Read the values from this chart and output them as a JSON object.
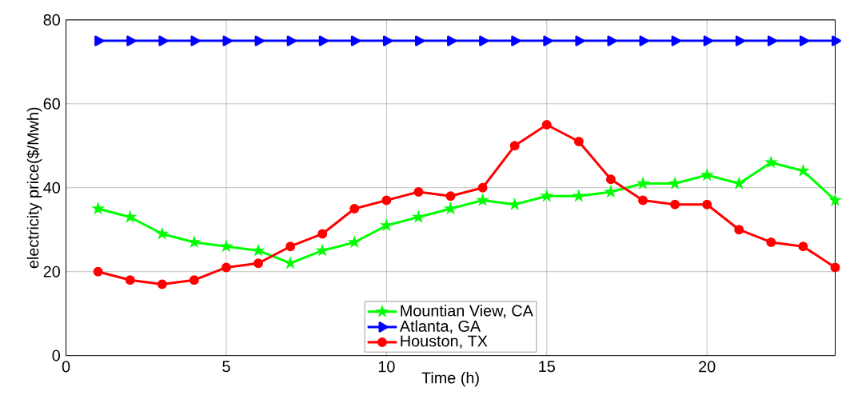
{
  "chart_data": {
    "type": "line",
    "xlabel": "Time (h)",
    "ylabel": "electricity price($/Mwh)",
    "x": [
      1,
      2,
      3,
      4,
      5,
      6,
      7,
      8,
      9,
      10,
      11,
      12,
      13,
      14,
      15,
      16,
      17,
      18,
      19,
      20,
      21,
      22,
      23,
      24
    ],
    "series": [
      {
        "name": "Mountian View, CA",
        "color": "#00ff00",
        "marker": "star",
        "values": [
          35,
          33,
          29,
          27,
          26,
          25,
          22,
          25,
          27,
          31,
          33,
          35,
          37,
          36,
          38,
          38,
          39,
          41,
          41,
          43,
          41,
          46,
          44,
          37
        ]
      },
      {
        "name": "Atlanta, GA",
        "color": "#0000ff",
        "marker": "triangle",
        "values": [
          75,
          75,
          75,
          75,
          75,
          75,
          75,
          75,
          75,
          75,
          75,
          75,
          75,
          75,
          75,
          75,
          75,
          75,
          75,
          75,
          75,
          75,
          75,
          75
        ]
      },
      {
        "name": "Houston, TX",
        "color": "#ff0000",
        "marker": "circle",
        "values": [
          20,
          18,
          17,
          18,
          21,
          22,
          26,
          29,
          35,
          37,
          39,
          38,
          40,
          50,
          55,
          51,
          42,
          37,
          36,
          36,
          30,
          27,
          26,
          21
        ]
      }
    ],
    "xlim": [
      0,
      24
    ],
    "ylim": [
      0,
      80
    ],
    "xticks": [
      0,
      5,
      10,
      15,
      20
    ],
    "yticks": [
      0,
      20,
      40,
      60,
      80
    ],
    "grid": true,
    "legend": "bottom",
    "line_style": "solid"
  }
}
